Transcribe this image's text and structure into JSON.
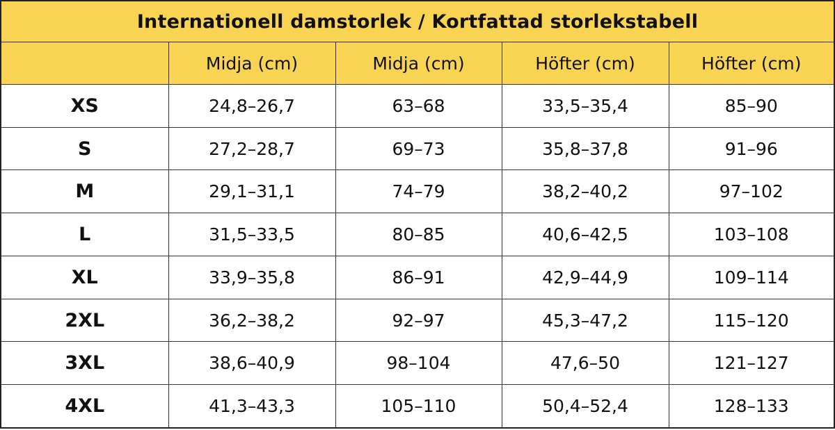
{
  "title": "Internationell damstorlek / Kortfattad storlekstabell",
  "columns": [
    "",
    "Midja (cm)",
    "Midja (cm)",
    "Höfter (cm)",
    "Höfter (cm)"
  ],
  "rows": [
    {
      "size": "XS",
      "values": [
        "24,8–26,7",
        "63–68",
        "33,5–35,4",
        "85–90"
      ]
    },
    {
      "size": "S",
      "values": [
        "27,2–28,7",
        "69–73",
        "35,8–37,8",
        "91–96"
      ]
    },
    {
      "size": "M",
      "values": [
        "29,1–31,1",
        "74–79",
        "38,2–40,2",
        "97–102"
      ]
    },
    {
      "size": "L",
      "values": [
        "31,5–33,5",
        "80–85",
        "40,6–42,5",
        "103–108"
      ]
    },
    {
      "size": "XL",
      "values": [
        "33,9–35,8",
        "86–91",
        "42,9–44,9",
        "109–114"
      ]
    },
    {
      "size": "2XL",
      "values": [
        "36,2–38,2",
        "92–97",
        "45,3–47,2",
        "115–120"
      ]
    },
    {
      "size": "3XL",
      "values": [
        "38,6–40,9",
        "98–104",
        "47,6–50",
        "121–127"
      ]
    },
    {
      "size": "4XL",
      "values": [
        "41,3–43,3",
        "105–110",
        "50,4–52,4",
        "128–133"
      ]
    }
  ],
  "colors": {
    "header_background": "#f8d452",
    "cell_background": "#ffffff",
    "border": "#333333",
    "text": "#111111"
  }
}
